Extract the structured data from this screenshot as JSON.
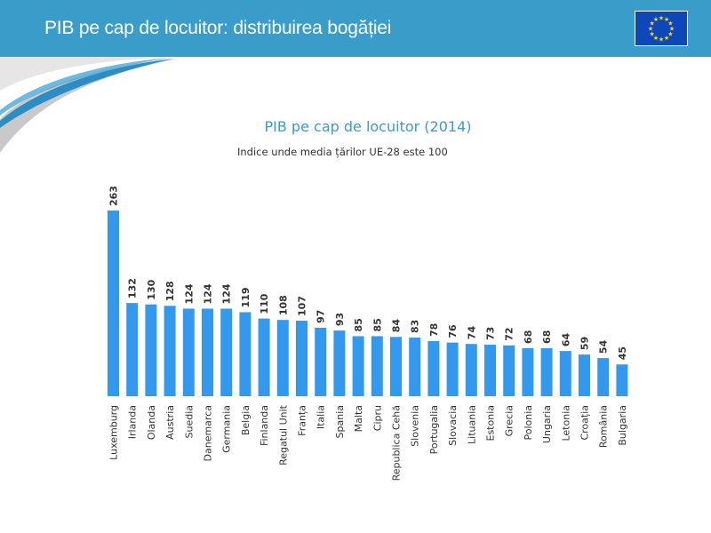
{
  "header": {
    "title": "PIB pe cap de locuitor: distribuirea bogăției",
    "flag_icon": "eu-flag-icon",
    "color": "#3a9cc8"
  },
  "chart_data": {
    "type": "bar",
    "title": "PIB pe cap de locuitor (2014)",
    "subtitle": "Indice unde media țărilor UE-28 este 100",
    "xlabel": "",
    "ylabel": "",
    "ylim": [
      0,
      263
    ],
    "grid": false,
    "bar_color": "#3399ee",
    "categories": [
      "Luxemburg",
      "Irlanda",
      "Olanda",
      "Austria",
      "Suedia",
      "Danemarca",
      "Germania",
      "Belgia",
      "Finlanda",
      "Regatul Unit",
      "Franța",
      "Italia",
      "Spania",
      "Malta",
      "Cipru",
      "Republica Cehă",
      "Slovenia",
      "Portugalia",
      "Slovacia",
      "Lituania",
      "Estonia",
      "Grecia",
      "Polonia",
      "Ungaria",
      "Letonia",
      "Croația",
      "România",
      "Bulgaria"
    ],
    "values": [
      263,
      132,
      130,
      128,
      124,
      124,
      124,
      119,
      110,
      108,
      107,
      97,
      93,
      85,
      85,
      84,
      83,
      78,
      76,
      74,
      73,
      72,
      68,
      68,
      64,
      59,
      54,
      45
    ]
  }
}
